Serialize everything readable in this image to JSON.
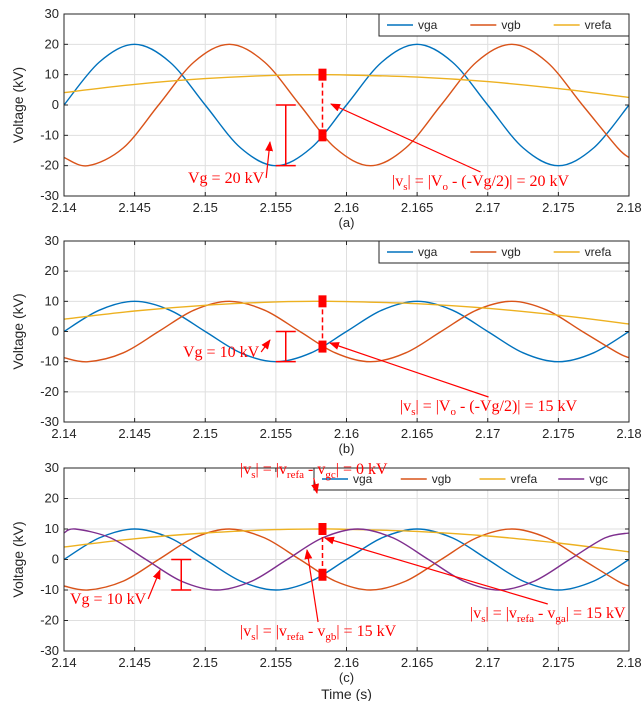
{
  "chart_data": [
    {
      "type": "line",
      "panel_label": "(a)",
      "ylabel": "Voltage (kV)",
      "xlabel": "",
      "xlim": [
        2.14,
        2.18
      ],
      "ylim": [
        -30,
        30
      ],
      "xticks": [
        2.14,
        2.145,
        2.15,
        2.155,
        2.16,
        2.165,
        2.17,
        2.175,
        2.18
      ],
      "xtick_labels": [
        "2.14",
        "2.145",
        "2.15",
        "2.155",
        "2.16",
        "2.165",
        "2.17",
        "2.175",
        "2.18"
      ],
      "yticks": [
        -30,
        -20,
        -10,
        0,
        10,
        20,
        30
      ],
      "grid": true,
      "legend_position": "top-right",
      "legend_orientation": "horizontal",
      "series": [
        {
          "name": "vga",
          "color": "#0072BD",
          "points": [
            [
              2.14,
              0
            ],
            [
              2.1425,
              14.14
            ],
            [
              2.145,
              20
            ],
            [
              2.1475,
              14.14
            ],
            [
              2.15,
              0
            ],
            [
              2.1525,
              -14.14
            ],
            [
              2.155,
              -20
            ],
            [
              2.1575,
              -14.14
            ],
            [
              2.16,
              0
            ],
            [
              2.1625,
              14.14
            ],
            [
              2.165,
              20
            ],
            [
              2.1675,
              14.14
            ],
            [
              2.17,
              0
            ],
            [
              2.1725,
              -14.14
            ],
            [
              2.175,
              -20
            ],
            [
              2.1775,
              -14.14
            ],
            [
              2.18,
              0
            ]
          ]
        },
        {
          "name": "vgb",
          "color": "#D95319",
          "points": [
            [
              2.14,
              -17.3
            ],
            [
              2.1417,
              -20
            ],
            [
              2.1442,
              -14.14
            ],
            [
              2.1467,
              0
            ],
            [
              2.1492,
              14.14
            ],
            [
              2.1517,
              20
            ],
            [
              2.1542,
              14.14
            ],
            [
              2.1567,
              0
            ],
            [
              2.1592,
              -14.14
            ],
            [
              2.1617,
              -20
            ],
            [
              2.1642,
              -14.14
            ],
            [
              2.1667,
              0
            ],
            [
              2.1692,
              14.14
            ],
            [
              2.1717,
              20
            ],
            [
              2.1742,
              14.14
            ],
            [
              2.1767,
              0
            ],
            [
              2.1792,
              -14.14
            ],
            [
              2.18,
              -17.3
            ]
          ]
        },
        {
          "name": "vrefa",
          "color": "#EDB120",
          "points": [
            [
              2.14,
              4.1
            ],
            [
              2.145,
              6.8
            ],
            [
              2.15,
              8.7
            ],
            [
              2.155,
              9.8
            ],
            [
              2.1583,
              10
            ],
            [
              2.16,
              9.9
            ],
            [
              2.165,
              9.2
            ],
            [
              2.17,
              7.7
            ],
            [
              2.175,
              5.4
            ],
            [
              2.18,
              2.5
            ]
          ]
        }
      ],
      "annotations": [
        {
          "text": "Vg = 20 kV"
        },
        {
          "parts": [
            "|v",
            "s",
            "| = |V",
            "o",
            " - (-Vg/2)| = 20 kV"
          ]
        }
      ],
      "markers": {
        "x": 2.1583,
        "top": 10,
        "bottom": -10
      },
      "range_bar": {
        "x": 2.1557,
        "from": 0,
        "to": -20
      }
    },
    {
      "type": "line",
      "panel_label": "(b)",
      "ylabel": "Voltage (kV)",
      "xlabel": "",
      "xlim": [
        2.14,
        2.18
      ],
      "ylim": [
        -30,
        30
      ],
      "xticks": [
        2.14,
        2.145,
        2.15,
        2.155,
        2.16,
        2.165,
        2.17,
        2.175,
        2.18
      ],
      "xtick_labels": [
        "2.14",
        "2.145",
        "2.15",
        "2.155",
        "2.16",
        "2.165",
        "2.17",
        "2.175",
        "2.18"
      ],
      "yticks": [
        -30,
        -20,
        -10,
        0,
        10,
        20,
        30
      ],
      "grid": true,
      "legend_position": "top-right",
      "legend_orientation": "horizontal",
      "series": [
        {
          "name": "vga",
          "color": "#0072BD",
          "points": [
            [
              2.14,
              0
            ],
            [
              2.1425,
              7.07
            ],
            [
              2.145,
              10
            ],
            [
              2.1475,
              7.07
            ],
            [
              2.15,
              0
            ],
            [
              2.1525,
              -7.07
            ],
            [
              2.155,
              -10
            ],
            [
              2.1575,
              -7.07
            ],
            [
              2.16,
              0
            ],
            [
              2.1625,
              7.07
            ],
            [
              2.165,
              10
            ],
            [
              2.1675,
              7.07
            ],
            [
              2.17,
              0
            ],
            [
              2.1725,
              -7.07
            ],
            [
              2.175,
              -10
            ],
            [
              2.1775,
              -7.07
            ],
            [
              2.18,
              0
            ]
          ]
        },
        {
          "name": "vgb",
          "color": "#D95319",
          "points": [
            [
              2.14,
              -8.7
            ],
            [
              2.1417,
              -10
            ],
            [
              2.1442,
              -7.07
            ],
            [
              2.1467,
              0
            ],
            [
              2.1492,
              7.07
            ],
            [
              2.1517,
              10
            ],
            [
              2.1542,
              7.07
            ],
            [
              2.1567,
              0
            ],
            [
              2.1592,
              -7.07
            ],
            [
              2.1617,
              -10
            ],
            [
              2.1642,
              -7.07
            ],
            [
              2.1667,
              0
            ],
            [
              2.1692,
              7.07
            ],
            [
              2.1717,
              10
            ],
            [
              2.1742,
              7.07
            ],
            [
              2.1767,
              0
            ],
            [
              2.1792,
              -7.07
            ],
            [
              2.18,
              -8.7
            ]
          ]
        },
        {
          "name": "vrefa",
          "color": "#EDB120",
          "points": [
            [
              2.14,
              4.1
            ],
            [
              2.145,
              6.8
            ],
            [
              2.15,
              8.7
            ],
            [
              2.155,
              9.8
            ],
            [
              2.1583,
              10
            ],
            [
              2.16,
              9.9
            ],
            [
              2.165,
              9.2
            ],
            [
              2.17,
              7.7
            ],
            [
              2.175,
              5.4
            ],
            [
              2.18,
              2.5
            ]
          ]
        }
      ],
      "annotations": [
        {
          "text": "Vg = 10 kV"
        },
        {
          "parts": [
            "|v",
            "s",
            "| = |V",
            "o",
            " - (-Vg/2)| = 15 kV"
          ]
        }
      ],
      "markers": {
        "x": 2.1583,
        "top": 10,
        "bottom": -5
      },
      "range_bar": {
        "x": 2.1557,
        "from": 0,
        "to": -10
      }
    },
    {
      "type": "line",
      "panel_label": "(c)",
      "ylabel": "Voltage (kV)",
      "xlabel": "Time (s)",
      "xlim": [
        2.14,
        2.18
      ],
      "ylim": [
        -30,
        30
      ],
      "xticks": [
        2.14,
        2.145,
        2.15,
        2.155,
        2.16,
        2.165,
        2.17,
        2.175,
        2.18
      ],
      "xtick_labels": [
        "2.14",
        "2.145",
        "2.15",
        "2.155",
        "2.16",
        "2.165",
        "2.17",
        "2.175",
        "2.18"
      ],
      "yticks": [
        -30,
        -20,
        -10,
        0,
        10,
        20,
        30
      ],
      "grid": true,
      "legend_position": "top-right",
      "legend_orientation": "horizontal",
      "series": [
        {
          "name": "vga",
          "color": "#0072BD",
          "points": [
            [
              2.14,
              0
            ],
            [
              2.1425,
              7.07
            ],
            [
              2.145,
              10
            ],
            [
              2.1475,
              7.07
            ],
            [
              2.15,
              0
            ],
            [
              2.1525,
              -7.07
            ],
            [
              2.155,
              -10
            ],
            [
              2.1575,
              -7.07
            ],
            [
              2.16,
              0
            ],
            [
              2.1625,
              7.07
            ],
            [
              2.165,
              10
            ],
            [
              2.1675,
              7.07
            ],
            [
              2.17,
              0
            ],
            [
              2.1725,
              -7.07
            ],
            [
              2.175,
              -10
            ],
            [
              2.1775,
              -7.07
            ],
            [
              2.18,
              0
            ]
          ]
        },
        {
          "name": "vgb",
          "color": "#D95319",
          "points": [
            [
              2.14,
              -8.7
            ],
            [
              2.1417,
              -10
            ],
            [
              2.1442,
              -7.07
            ],
            [
              2.1467,
              0
            ],
            [
              2.1492,
              7.07
            ],
            [
              2.1517,
              10
            ],
            [
              2.1542,
              7.07
            ],
            [
              2.1567,
              0
            ],
            [
              2.1592,
              -7.07
            ],
            [
              2.1617,
              -10
            ],
            [
              2.1642,
              -7.07
            ],
            [
              2.1667,
              0
            ],
            [
              2.1692,
              7.07
            ],
            [
              2.1717,
              10
            ],
            [
              2.1742,
              7.07
            ],
            [
              2.1767,
              0
            ],
            [
              2.1792,
              -7.07
            ],
            [
              2.18,
              -8.7
            ]
          ]
        },
        {
          "name": "vrefa",
          "color": "#EDB120",
          "points": [
            [
              2.14,
              4.1
            ],
            [
              2.145,
              6.8
            ],
            [
              2.15,
              8.7
            ],
            [
              2.155,
              9.8
            ],
            [
              2.1583,
              10
            ],
            [
              2.16,
              9.9
            ],
            [
              2.165,
              9.2
            ],
            [
              2.17,
              7.7
            ],
            [
              2.175,
              5.4
            ],
            [
              2.18,
              2.5
            ]
          ]
        },
        {
          "name": "vgc",
          "color": "#7E2F8E",
          "points": [
            [
              2.14,
              8.7
            ],
            [
              2.1408,
              10
            ],
            [
              2.1433,
              7.07
            ],
            [
              2.1458,
              0
            ],
            [
              2.1483,
              -7.07
            ],
            [
              2.1508,
              -10
            ],
            [
              2.1533,
              -7.07
            ],
            [
              2.1558,
              0
            ],
            [
              2.1583,
              7.07
            ],
            [
              2.1608,
              10
            ],
            [
              2.1633,
              7.07
            ],
            [
              2.1658,
              0
            ],
            [
              2.1683,
              -7.07
            ],
            [
              2.1708,
              -10
            ],
            [
              2.1733,
              -7.07
            ],
            [
              2.1758,
              0
            ],
            [
              2.1783,
              7.07
            ],
            [
              2.18,
              8.7
            ]
          ]
        }
      ],
      "annotations": [
        {
          "parts": [
            "|v",
            "s",
            "| = |v",
            "refa",
            " - v",
            "gc",
            "| = 0 kV"
          ]
        },
        {
          "text": "Vg = 10 kV"
        },
        {
          "parts": [
            "|v",
            "s",
            "| = |v",
            "refa",
            " - v",
            "gb",
            "| = 15 kV"
          ]
        },
        {
          "parts": [
            "|v",
            "s",
            "| = |v",
            "refa",
            " - v",
            "ga",
            "| = 15 kV"
          ]
        }
      ],
      "markers": {
        "x": 2.1583,
        "top": 10,
        "bottom": -5
      },
      "range_bar": {
        "x": 2.1483,
        "from": 0,
        "to": -10
      }
    }
  ]
}
